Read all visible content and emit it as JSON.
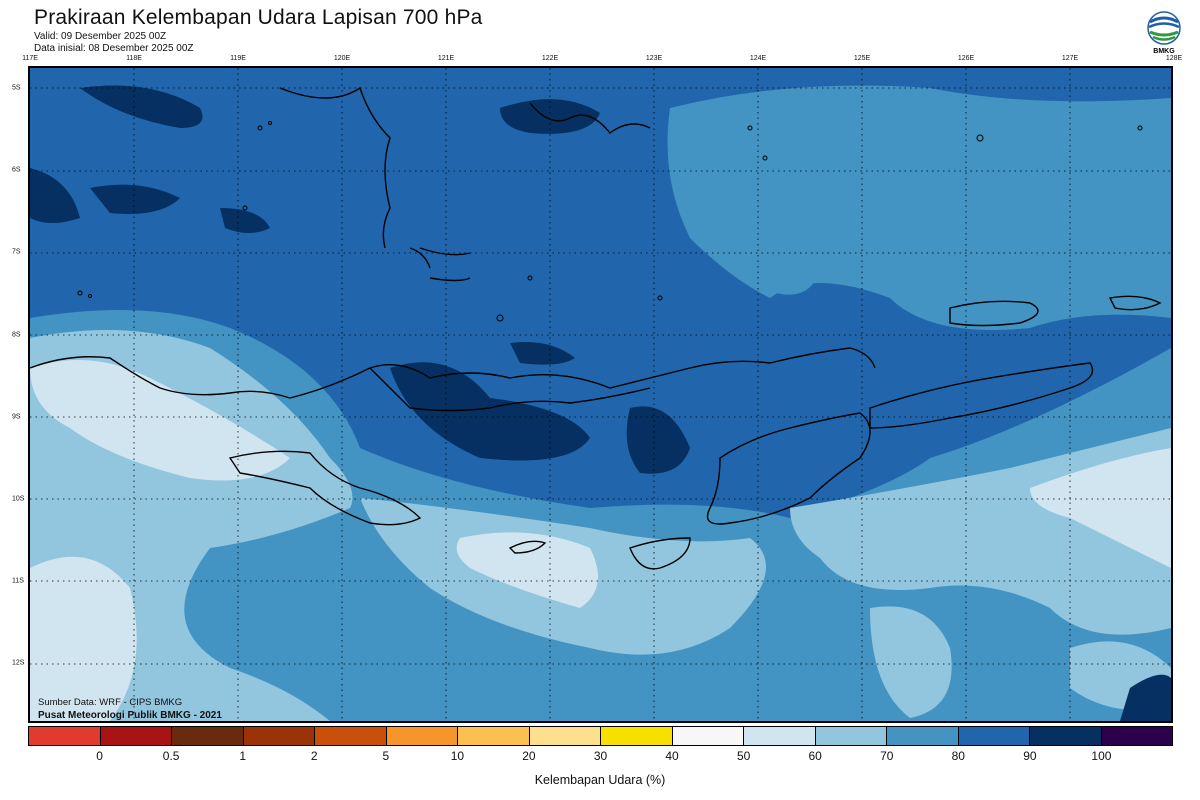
{
  "header": {
    "title": "Prakiraan Kelembapan Udara Lapisan 700 hPa",
    "valid": "Valid: 09 Desember 2025 00Z",
    "initial": "Data inisial: 08 Desember 2025 00Z",
    "logo_text": "BMKG"
  },
  "axes": {
    "lon_labels": [
      "117E",
      "118E",
      "119E",
      "120E",
      "121E",
      "122E",
      "123E",
      "124E",
      "125E",
      "126E",
      "127E",
      "128E"
    ],
    "lat_labels": [
      "5S",
      "6S",
      "7S",
      "8S",
      "9S",
      "10S",
      "11S",
      "12S"
    ]
  },
  "credits": {
    "source": "Sumber Data: WRF - CIPS BMKG",
    "center": "Pusat Meteorologi Publik BMKG - 2021"
  },
  "colorbar": {
    "title": "Kelembapan Udara (%)",
    "labels": [
      "0",
      "0.5",
      "1",
      "2",
      "5",
      "10",
      "20",
      "30",
      "40",
      "50",
      "60",
      "70",
      "80",
      "90",
      "100"
    ],
    "colors": [
      "#e03a31",
      "#a81416",
      "#6a2a10",
      "#9a3408",
      "#c9500a",
      "#f6952a",
      "#fbc050",
      "#fde08e",
      "#f7e000",
      "#f7f7f7",
      "#d1e5f0",
      "#92c5de",
      "#4393c3",
      "#2166ac",
      "#053061",
      "#2d004b"
    ]
  }
}
